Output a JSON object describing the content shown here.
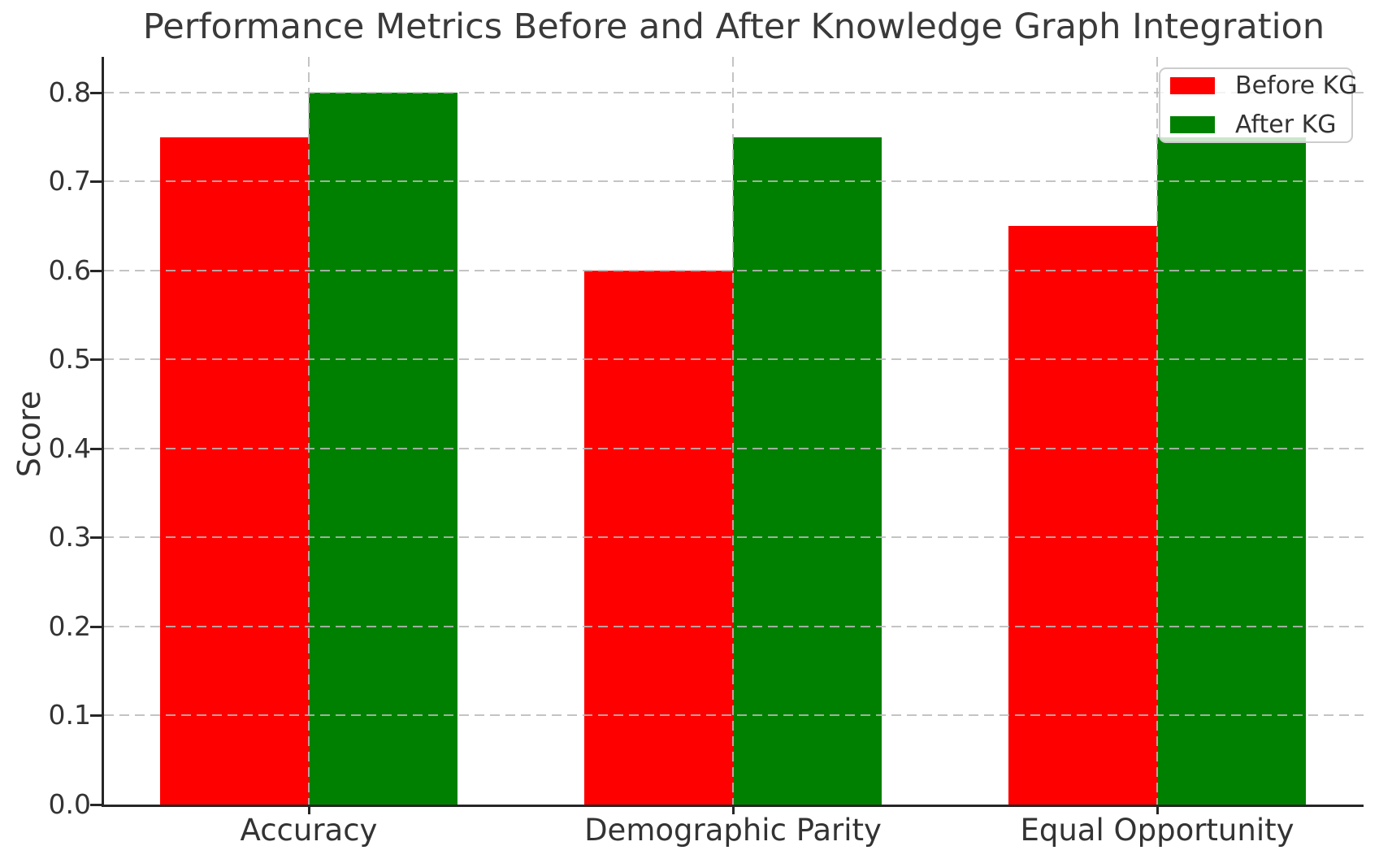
{
  "chart_data": {
    "type": "bar",
    "title": "Performance Metrics Before and After Knowledge Graph Integration",
    "xlabel": "",
    "ylabel": "Score",
    "categories": [
      "Accuracy",
      "Demographic Parity",
      "Equal Opportunity"
    ],
    "series": [
      {
        "name": "Before KG",
        "color": "#ff0000",
        "values": [
          0.75,
          0.6,
          0.65
        ]
      },
      {
        "name": "After KG",
        "color": "#008000",
        "values": [
          0.8,
          0.75,
          0.75
        ]
      }
    ],
    "ylim": [
      0.0,
      0.84
    ],
    "yticks": [
      0.0,
      0.1,
      0.2,
      0.3,
      0.4,
      0.5,
      0.6,
      0.7,
      0.8
    ],
    "ytick_format": "one-decimal",
    "grid": {
      "axes": "both",
      "style": "dashed",
      "drawn_above_bars": true
    },
    "legend_position": "upper right",
    "bar_width_fraction": 0.35
  },
  "colors": {
    "before_kg": "#ff0000",
    "after_kg": "#008000",
    "text": "#333333",
    "spine": "#262626",
    "grid": "#bababa",
    "legend_border": "#cccccc",
    "background": "#ffffff"
  }
}
